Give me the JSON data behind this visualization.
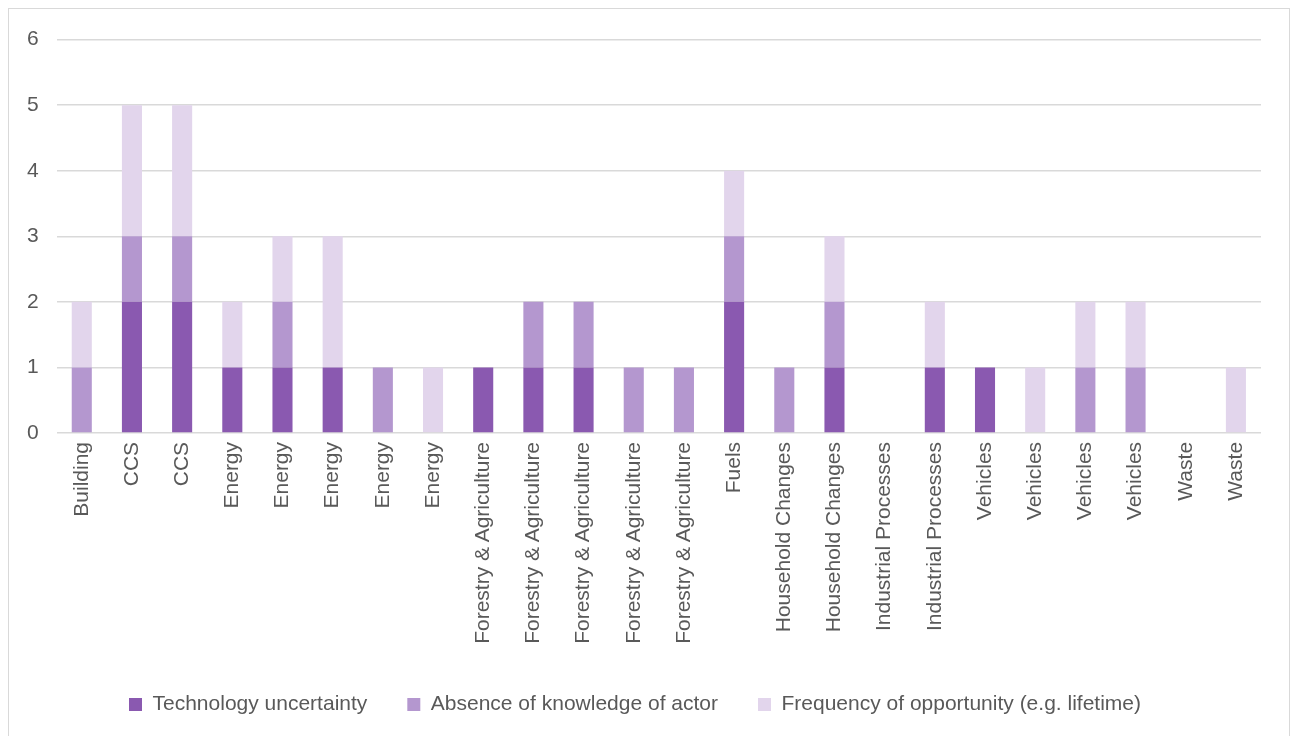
{
  "chart_data": {
    "type": "bar",
    "stacked": true,
    "categories": [
      "Building",
      "CCS",
      "CCS",
      "Energy",
      "Energy",
      "Energy",
      "Energy",
      "Energy",
      "Forestry & Agriculture",
      "Forestry & Agriculture",
      "Forestry & Agriculture",
      "Forestry & Agriculture",
      "Forestry & Agriculture",
      "Fuels",
      "Household Changes",
      "Household Changes",
      "Industrial Processes",
      "Industrial Processes",
      "Vehicles",
      "Vehicles",
      "Vehicles",
      "Vehicles",
      "Waste",
      "Waste"
    ],
    "series": [
      {
        "name": "Technology uncertainty",
        "color": "#8a59b0",
        "values": [
          0,
          2,
          2,
          1,
          1,
          1,
          0,
          0,
          1,
          1,
          1,
          0,
          0,
          2,
          0,
          1,
          0,
          1,
          1,
          0,
          0,
          0,
          0,
          0
        ]
      },
      {
        "name": "Absence of knowledge of actor",
        "color": "#b497cf",
        "values": [
          1,
          1,
          1,
          0,
          1,
          0,
          1,
          0,
          0,
          1,
          1,
          1,
          1,
          1,
          1,
          1,
          0,
          0,
          0,
          0,
          1,
          1,
          0,
          0
        ]
      },
      {
        "name": "Frequency of opportunity (e.g. lifetime)",
        "color": "#e2d5ec",
        "values": [
          1,
          2,
          2,
          1,
          1,
          2,
          0,
          1,
          0,
          0,
          0,
          0,
          0,
          1,
          0,
          1,
          0,
          1,
          0,
          1,
          1,
          1,
          0,
          1
        ]
      }
    ],
    "ylim": [
      0,
      6
    ],
    "yticks": [
      0,
      1,
      2,
      3,
      4,
      5,
      6
    ],
    "grid": "y",
    "legend": "bottom"
  }
}
